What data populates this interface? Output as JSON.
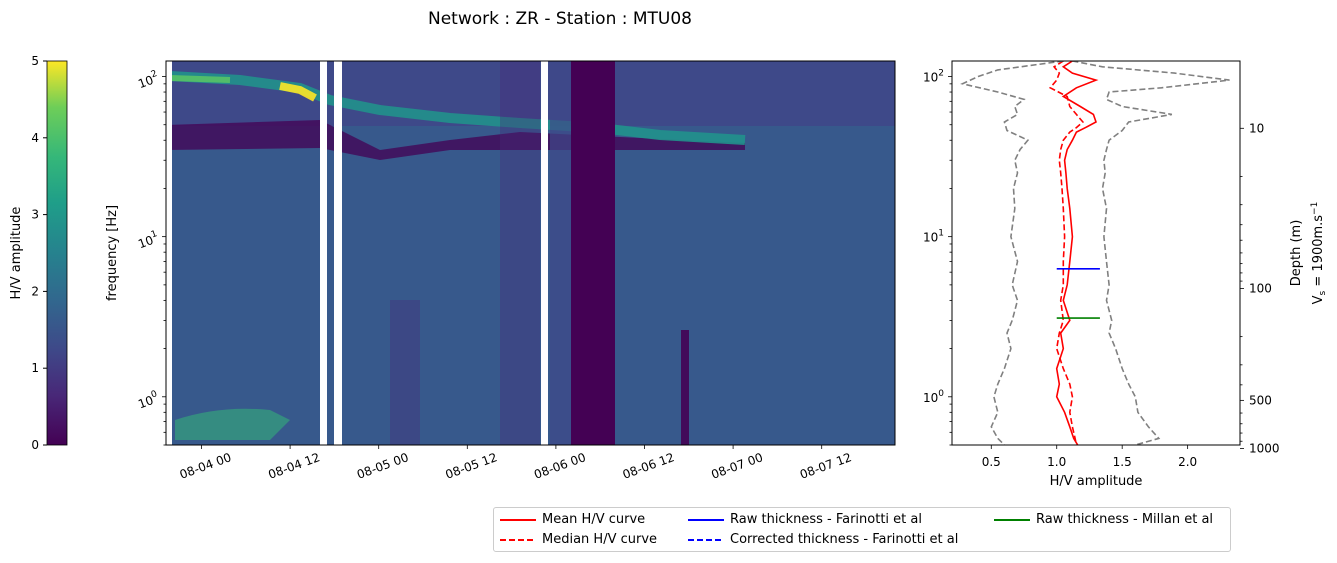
{
  "title": "Network : ZR - Station : MTU08",
  "colorbar": {
    "label": "H/V amplitude",
    "ticks": [
      "0",
      "1",
      "2",
      "3",
      "4",
      "5"
    ],
    "range": [
      0,
      5
    ],
    "colormap": "viridis"
  },
  "chart_data": [
    {
      "type": "heatmap",
      "title": "",
      "ylabel": "frequency [Hz]",
      "xlabel": "",
      "yscale": "log",
      "ylim": [
        0.5,
        125
      ],
      "x_tick_labels": [
        "08-04 00",
        "08-04 12",
        "08-05 00",
        "08-05 12",
        "08-06 00",
        "08-06 12",
        "08-07 00",
        "08-07 12"
      ],
      "y_tick_labels": [
        "10^0",
        "10^1",
        "10^2"
      ],
      "xlim": [
        "08-03 22:00",
        "08-08 02:00"
      ],
      "data_gaps": [
        [
          "08-04 16:00",
          "08-04 17:00"
        ],
        [
          "08-04 18:00",
          "08-04 18:30"
        ],
        [
          "08-05 20:00",
          "08-05 20:40"
        ]
      ],
      "features": {
        "resonance_band": {
          "x": [
            "08-04 00",
            "08-04 12",
            "08-05 00",
            "08-05 12",
            "08-06 00",
            "08-06 12",
            "08-07 00"
          ],
          "frequency_hz": [
            95,
            80,
            63,
            55,
            50,
            45,
            40
          ],
          "peak_amplitude": [
            3.2,
            5.0,
            3.0,
            2.9,
            2.7,
            3.0,
            2.8
          ]
        },
        "low_amplitude_window": [
          "08-06 01:00",
          "08-06 06:00"
        ]
      }
    },
    {
      "type": "line",
      "title": "",
      "xlabel": "H/V amplitude",
      "ylabel_right": "Depth (m)",
      "ylabel_right_line2": "Vs = 1900m.s-1",
      "ylabel_right_symbol": "V",
      "ylabel_right_subscript": "s",
      "ylabel_right_rest": " = 1900m.s",
      "ylabel_right_superscript": "−1",
      "xlim": [
        0.2,
        2.4
      ],
      "ylim": [
        0.5,
        125
      ],
      "yscale": "log",
      "x_ticks": [
        0.5,
        1.0,
        1.5,
        2.0
      ],
      "x_tick_labels": [
        "0.5",
        "1.0",
        "1.5",
        "2.0"
      ],
      "y_tick_labels": [
        "10^0",
        "10^1",
        "10^2"
      ],
      "depth_ticks": [
        10,
        100,
        500,
        1000
      ],
      "depth_tick_labels": [
        "10",
        "100",
        "500",
        "1000"
      ],
      "series": [
        {
          "name": "Mean H/V curve",
          "color": "#ff0000",
          "style": "solid",
          "frequency": [
            125,
            115,
            105,
            95,
            85,
            75,
            65,
            58,
            52,
            48,
            45,
            40,
            35,
            30,
            25,
            20,
            15,
            10,
            7,
            5,
            4,
            3,
            2.5,
            2,
            1.5,
            1.2,
            1.0,
            0.8,
            0.65,
            0.55,
            0.5
          ],
          "amplitude": [
            1.12,
            1.05,
            1.12,
            1.3,
            1.15,
            1.05,
            1.18,
            1.28,
            1.3,
            1.22,
            1.15,
            1.12,
            1.08,
            1.06,
            1.07,
            1.08,
            1.1,
            1.12,
            1.1,
            1.08,
            1.05,
            1.1,
            1.03,
            1.05,
            1.0,
            1.02,
            1.0,
            1.06,
            1.1,
            1.13,
            1.16
          ]
        },
        {
          "name": "Median H/V curve",
          "color": "#ff0000",
          "style": "dashed",
          "frequency": [
            125,
            115,
            105,
            95,
            85,
            75,
            65,
            58,
            52,
            48,
            45,
            40,
            35,
            30,
            25,
            20,
            15,
            10,
            7,
            5,
            4,
            3,
            2.5,
            2,
            1.5,
            1.2,
            1.0,
            0.8,
            0.65,
            0.55,
            0.5
          ],
          "amplitude": [
            1.05,
            0.98,
            1.02,
            1.0,
            0.95,
            1.08,
            1.1,
            1.15,
            1.2,
            1.15,
            1.1,
            1.05,
            1.03,
            1.02,
            1.03,
            1.04,
            1.05,
            1.06,
            1.05,
            1.05,
            1.03,
            1.05,
            1.02,
            1.0,
            1.05,
            1.1,
            1.12,
            1.1,
            1.12,
            1.14,
            1.15
          ]
        },
        {
          "name": "Mean - std",
          "color": "#808080",
          "style": "dashed",
          "legend": false,
          "frequency": [
            125,
            110,
            100,
            90,
            80,
            72,
            65,
            58,
            52,
            46,
            40,
            35,
            30,
            25,
            20,
            15,
            10,
            7,
            5,
            4,
            3,
            2.5,
            2,
            1.5,
            1.2,
            1.0,
            0.8,
            0.65,
            0.55,
            0.5
          ],
          "amplitude": [
            1.05,
            0.55,
            0.4,
            0.28,
            0.55,
            0.75,
            0.68,
            0.7,
            0.6,
            0.62,
            0.78,
            0.72,
            0.68,
            0.7,
            0.67,
            0.68,
            0.65,
            0.7,
            0.66,
            0.7,
            0.66,
            0.62,
            0.65,
            0.6,
            0.55,
            0.52,
            0.55,
            0.5,
            0.55,
            0.6
          ]
        },
        {
          "name": "Mean + std",
          "color": "#808080",
          "style": "dashed",
          "legend": false,
          "frequency": [
            125,
            115,
            105,
            95,
            85,
            80,
            72,
            65,
            58,
            52,
            46,
            40,
            35,
            30,
            25,
            20,
            15,
            10,
            7,
            5,
            4,
            3,
            2.5,
            2,
            1.5,
            1.2,
            1.0,
            0.8,
            0.65,
            0.55,
            0.5
          ],
          "amplitude": [
            1.12,
            1.35,
            1.9,
            2.32,
            1.8,
            1.4,
            1.38,
            1.5,
            1.88,
            1.55,
            1.5,
            1.4,
            1.38,
            1.36,
            1.37,
            1.35,
            1.38,
            1.36,
            1.38,
            1.4,
            1.38,
            1.42,
            1.4,
            1.45,
            1.5,
            1.55,
            1.6,
            1.62,
            1.7,
            1.78,
            1.6
          ]
        },
        {
          "name": "Raw thickness - Farinotti et al",
          "color": "#0000ff",
          "style": "solid",
          "segment": {
            "frequency": 6.3,
            "amplitude_range": [
              1.0,
              1.33
            ]
          }
        },
        {
          "name": "Corrected thickness - Farinotti et al",
          "color": "#0000ff",
          "style": "dashed"
        },
        {
          "name": "Raw thickness - Millan et al",
          "color": "#008000",
          "style": "solid",
          "segment": {
            "frequency": 3.1,
            "amplitude_range": [
              1.0,
              1.33
            ]
          }
        }
      ]
    }
  ],
  "legend": {
    "placement": "bottom-right",
    "entries": [
      {
        "label": "Mean H/V curve",
        "color": "#ff0000",
        "style": "solid"
      },
      {
        "label": "Median H/V curve",
        "color": "#ff0000",
        "style": "dashed"
      },
      {
        "label": "Raw thickness - Farinotti et al",
        "color": "#0000ff",
        "style": "solid"
      },
      {
        "label": "Corrected thickness - Farinotti et al",
        "color": "#0000ff",
        "style": "dashed"
      },
      {
        "label": "Raw thickness - Millan et al",
        "color": "#008000",
        "style": "solid"
      }
    ]
  }
}
